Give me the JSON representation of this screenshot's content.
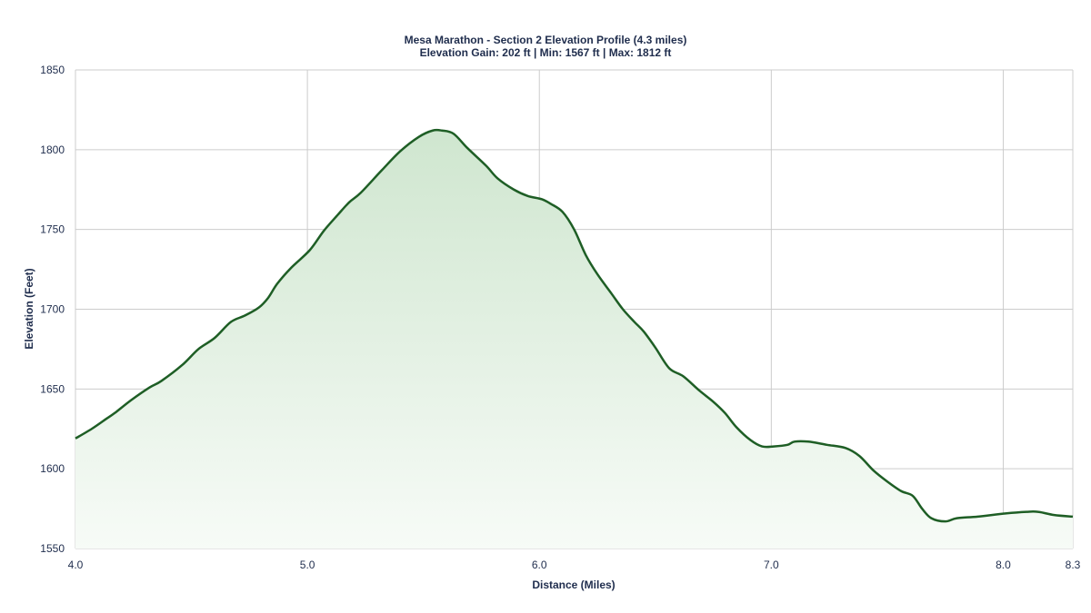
{
  "chart_data": {
    "type": "area",
    "title": "Mesa Marathon - Section 2 Elevation Profile (4.3 miles)",
    "subtitle": "Elevation Gain: 202 ft | Min: 1567 ft | Max: 1812 ft",
    "xlabel": "Distance (Miles)",
    "ylabel": "Elevation (Feet)",
    "xlim": [
      4.0,
      8.3
    ],
    "ylim": [
      1550,
      1850
    ],
    "x_ticks": [
      "4.0",
      "5.0",
      "6.0",
      "7.0",
      "8.0",
      "8.3"
    ],
    "x_tick_values": [
      4.0,
      5.0,
      6.0,
      7.0,
      8.0,
      8.3
    ],
    "y_ticks": [
      "1550",
      "1600",
      "1650",
      "1700",
      "1750",
      "1800",
      "1850"
    ],
    "y_tick_values": [
      1550,
      1600,
      1650,
      1700,
      1750,
      1800,
      1850
    ],
    "grid": true,
    "line_color": "#1e5e25",
    "fill_color": "#d0e8d0",
    "x": [
      4.0,
      4.07,
      4.13,
      4.17,
      4.24,
      4.32,
      4.37,
      4.46,
      4.53,
      4.6,
      4.67,
      4.73,
      4.79,
      4.83,
      4.87,
      4.93,
      5.01,
      5.07,
      5.13,
      5.18,
      5.23,
      5.32,
      5.4,
      5.48,
      5.54,
      5.58,
      5.63,
      5.69,
      5.77,
      5.82,
      5.89,
      5.95,
      6.01,
      6.05,
      6.1,
      6.15,
      6.2,
      6.25,
      6.31,
      6.36,
      6.41,
      6.45,
      6.5,
      6.56,
      6.62,
      6.69,
      6.75,
      6.8,
      6.85,
      6.91,
      6.96,
      7.01,
      7.07,
      7.1,
      7.16,
      7.24,
      7.32,
      7.38,
      7.44,
      7.5,
      7.56,
      7.61,
      7.65,
      7.69,
      7.75,
      7.8,
      7.89,
      8.01,
      8.1,
      8.15,
      8.22,
      8.3
    ],
    "y": [
      1619,
      1625,
      1631,
      1635,
      1643,
      1651,
      1655,
      1665,
      1675,
      1682,
      1692,
      1696,
      1701,
      1707,
      1716,
      1726,
      1737,
      1749,
      1759,
      1767,
      1773,
      1787,
      1799,
      1808,
      1812,
      1812,
      1810,
      1801,
      1790,
      1782,
      1775,
      1771,
      1769,
      1766,
      1761,
      1750,
      1734,
      1722,
      1710,
      1700,
      1692,
      1686,
      1676,
      1663,
      1658,
      1649,
      1642,
      1635,
      1626,
      1618,
      1614,
      1614,
      1615,
      1617,
      1617,
      1615,
      1613,
      1608,
      1599,
      1592,
      1586,
      1583,
      1575,
      1569,
      1567,
      1569,
      1570,
      1572,
      1573,
      1573,
      1571,
      1570
    ]
  }
}
